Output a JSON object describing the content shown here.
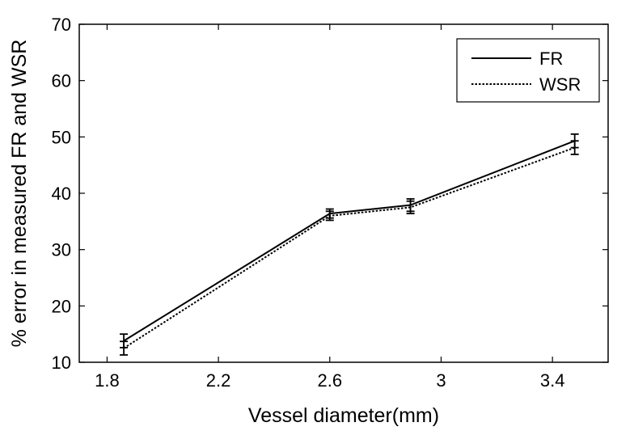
{
  "chart_data": {
    "type": "line",
    "xlabel": "Vessel diameter(mm)",
    "ylabel": "% error in measured FR and WSR",
    "xlim": [
      1.7,
      3.6
    ],
    "ylim": [
      10,
      70
    ],
    "xticks": [
      "1.8",
      "2.2",
      "2.6",
      "3",
      "3.4"
    ],
    "xtick_values": [
      1.8,
      2.2,
      2.6,
      3.0,
      3.4
    ],
    "yticks": [
      "10",
      "20",
      "30",
      "40",
      "50",
      "60",
      "70"
    ],
    "ytick_values": [
      10,
      20,
      30,
      40,
      50,
      60,
      70
    ],
    "grid": false,
    "legend_position": "top-right",
    "x": [
      1.86,
      2.6,
      2.89,
      3.48
    ],
    "series": [
      {
        "name": "FR",
        "style": "solid",
        "color": "#000000",
        "values": [
          13.8,
          36.4,
          37.9,
          49.3
        ],
        "errors": [
          1.2,
          0.8,
          1.1,
          1.2
        ]
      },
      {
        "name": "WSR",
        "style": "dotted",
        "color": "#000000",
        "values": [
          12.5,
          36.0,
          37.5,
          48.1
        ],
        "errors": [
          1.2,
          0.8,
          1.1,
          1.2
        ]
      }
    ]
  }
}
